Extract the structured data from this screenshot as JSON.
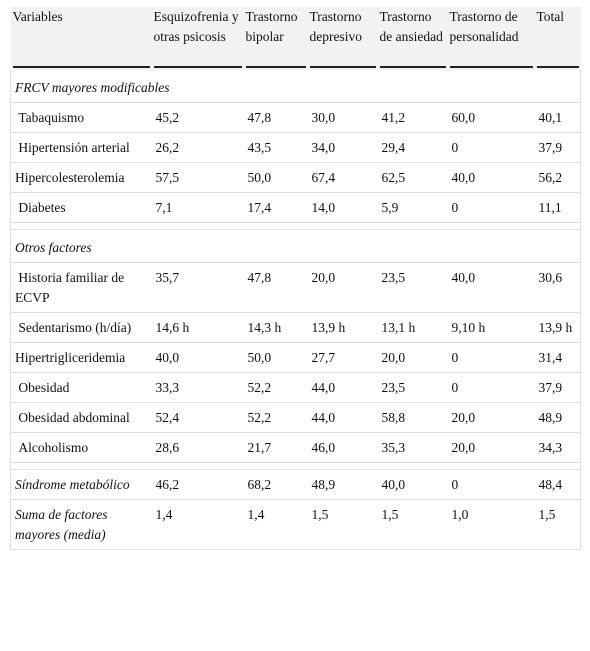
{
  "headers": [
    "Variables",
    "Esquizofrenia y otras psicosis",
    "Trastorno bipolar",
    "Trastorno depresivo",
    "Trastorno de ansiedad",
    "Trastorno de personalidad",
    "Total"
  ],
  "sections": [
    {
      "title": "FRCV mayores modificables",
      "rows": [
        {
          "label": " Tabaquismo",
          "values": [
            "45,2",
            "47,8",
            "30,0",
            "41,2",
            "60,0",
            "40,1"
          ]
        },
        {
          "label": " Hipertensión arterial",
          "values": [
            "26,2",
            "43,5",
            "34,0",
            "29,4",
            "0",
            "37,9"
          ]
        },
        {
          "label": "Hipercolesterolemia",
          "values": [
            "57,5",
            "50,0",
            "67,4",
            "62,5",
            "40,0",
            "56,2"
          ]
        },
        {
          "label": " Diabetes",
          "values": [
            "7,1",
            "17,4",
            "14,0",
            "5,9",
            "0",
            "11,1"
          ]
        }
      ]
    },
    {
      "title": "Otros factores",
      "rows": [
        {
          "label": " Historia familiar de ECVP",
          "values": [
            "35,7",
            "47,8",
            "20,0",
            "23,5",
            "40,0",
            "30,6"
          ]
        },
        {
          "label": " Sedentarismo (h/día)",
          "values": [
            "14,6 h",
            "14,3 h",
            "13,9 h",
            "13,1 h",
            "9,10 h",
            "13,9 h"
          ]
        },
        {
          "label": "Hipertrigliceridemia",
          "values": [
            "40,0",
            "50,0",
            "27,7",
            "20,0",
            "0",
            "31,4"
          ]
        },
        {
          "label": " Obesidad",
          "values": [
            "33,3",
            "52,2",
            "44,0",
            "23,5",
            "0",
            "37,9"
          ]
        },
        {
          "label": " Obesidad abdominal",
          "values": [
            "52,4",
            "52,2",
            "44,0",
            "58,8",
            "20,0",
            "48,9"
          ]
        },
        {
          "label": " Alcoholismo",
          "values": [
            "28,6",
            "21,7",
            "46,0",
            "35,3",
            "20,0",
            "34,3"
          ]
        }
      ]
    }
  ],
  "summary_rows": [
    {
      "label": "Síndrome metabólico",
      "values": [
        "46,2",
        "68,2",
        "48,9",
        "40,0",
        "0",
        "48,4"
      ]
    },
    {
      "label": "Suma de factores mayores (media)",
      "values": [
        "1,4",
        "1,4",
        "1,5",
        "1,5",
        "1,0",
        "1,5"
      ]
    }
  ]
}
